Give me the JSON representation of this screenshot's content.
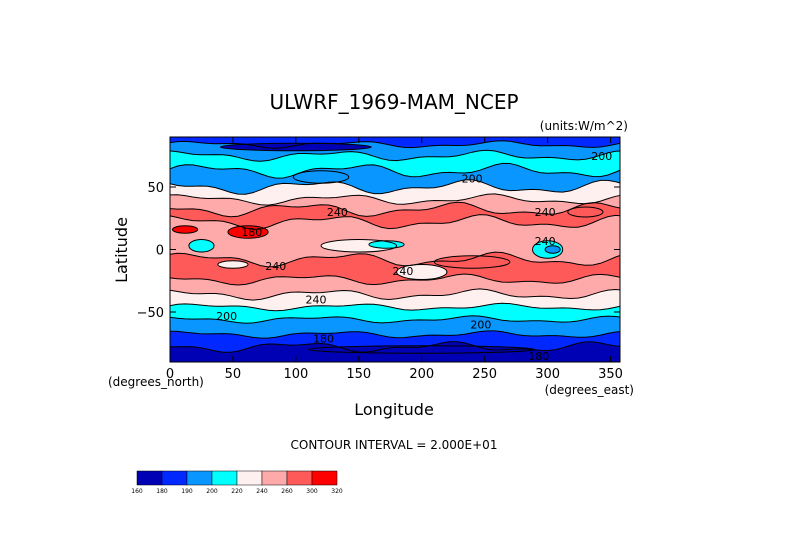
{
  "chart_data": {
    "type": "heatmap",
    "title": "ULWRF_1969-MAM_NCEP",
    "units": "(units:W/m^2)",
    "xlabel": "Longitude",
    "ylabel": "Latitude",
    "x_unit_note": "(degrees_east)",
    "y_unit_note": "(degrees_north)",
    "xlim": [
      0,
      357.5
    ],
    "ylim": [
      -90,
      90
    ],
    "x_ticks": [
      0,
      50,
      100,
      150,
      200,
      250,
      300,
      350
    ],
    "y_ticks": [
      50,
      0,
      -50
    ],
    "y_tick_labels": [
      "50",
      "0",
      "−50"
    ],
    "contour_interval_text": "CONTOUR INTERVAL = 2.000E+01",
    "contour_labels": [
      {
        "text": "200",
        "lon": 240,
        "lat": 57
      },
      {
        "text": "240",
        "lon": 133,
        "lat": 30
      },
      {
        "text": "240",
        "lon": 298,
        "lat": 30
      },
      {
        "text": "180",
        "lon": 65,
        "lat": 14
      },
      {
        "text": "240",
        "lon": 298,
        "lat": 7
      },
      {
        "text": "240",
        "lon": 84,
        "lat": -13
      },
      {
        "text": "240",
        "lon": 185,
        "lat": -17
      },
      {
        "text": "240",
        "lon": 116,
        "lat": -40
      },
      {
        "text": "200",
        "lon": 45,
        "lat": -53
      },
      {
        "text": "200",
        "lon": 247,
        "lat": -60
      },
      {
        "text": "180",
        "lon": 122,
        "lat": -71
      },
      {
        "text": "200",
        "lon": 343,
        "lat": 75
      },
      {
        "text": "180",
        "lon": 293,
        "lat": -85
      }
    ],
    "colorbar": {
      "levels": [
        "160",
        "180",
        "190",
        "200",
        "220",
        "240",
        "260",
        "300",
        "320"
      ],
      "colors": [
        "#0000b4",
        "#0028ff",
        "#0a96ff",
        "#00ffff",
        "#fff0f0",
        "#ffaaaa",
        "#ff5a5a",
        "#ff0000"
      ]
    },
    "colors": {
      "deep_blue": "#0000b4",
      "blue": "#0028ff",
      "mid_blue": "#0a96ff",
      "cyan": "#00ffff",
      "white_pink": "#fff0f0",
      "light_red": "#ffaaaa",
      "red": "#ff5a5a",
      "bright_red": "#ff0000"
    }
  }
}
